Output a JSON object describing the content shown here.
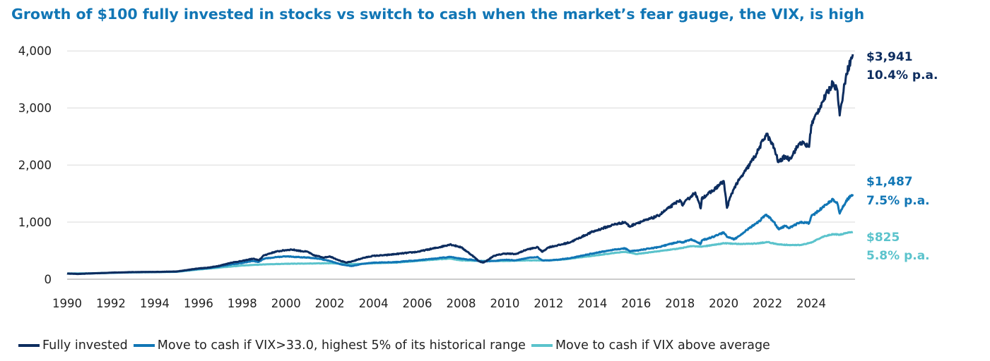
{
  "colors": {
    "fully_invested": "#0d2d5f",
    "vix33": "#1176b5",
    "vix_avg": "#5bc3cc",
    "title": "#1176b5",
    "grid": "#d9d9d9",
    "axis": "#999999"
  },
  "chart_data": {
    "type": "line",
    "title": "Growth of $100 fully invested in stocks vs switch to cash when the market’s fear gauge, the VIX, is high",
    "xlabel": "",
    "ylabel": "",
    "xlim": [
      1990,
      2026
    ],
    "ylim": [
      0,
      4200
    ],
    "x_ticks": [
      "1990",
      "1992",
      "1994",
      "1996",
      "1998",
      "2000",
      "2002",
      "2004",
      "2006",
      "2008",
      "2010",
      "2012",
      "2014",
      "2016",
      "2018",
      "2020",
      "2022",
      "2024"
    ],
    "y_ticks": [
      {
        "value": 0,
        "label": "0"
      },
      {
        "value": 1000,
        "label": "1,000"
      },
      {
        "value": 2000,
        "label": "2,000"
      },
      {
        "value": 3000,
        "label": "3,000"
      },
      {
        "value": 4000,
        "label": "4,000"
      }
    ],
    "grid": "horizontal",
    "legend_position": "bottom",
    "series": [
      {
        "name": "Fully invested",
        "color": "#0d2d5f",
        "end_value_label": "$3,941",
        "end_rate_label": "10.4% p.a.",
        "x": [
          1990.0,
          1990.5,
          1991.0,
          1992.0,
          1993.0,
          1994.0,
          1995.0,
          1996.0,
          1996.5,
          1997.0,
          1997.5,
          1998.0,
          1998.5,
          1998.75,
          1999.0,
          1999.5,
          2000.0,
          2000.25,
          2000.75,
          2001.0,
          2001.25,
          2001.75,
          2002.0,
          2002.5,
          2002.75,
          2003.0,
          2003.25,
          2003.5,
          2004.0,
          2004.5,
          2005.0,
          2006.0,
          2007.0,
          2007.5,
          2007.8,
          2008.0,
          2008.5,
          2008.8,
          2009.0,
          2009.2,
          2009.5,
          2010.0,
          2010.5,
          2011.0,
          2011.5,
          2011.7,
          2012.0,
          2012.5,
          2013.0,
          2014.0,
          2015.0,
          2015.5,
          2015.7,
          2016.0,
          2016.5,
          2017.0,
          2017.5,
          2018.0,
          2018.1,
          2018.5,
          2018.7,
          2018.95,
          2019.0,
          2019.5,
          2020.0,
          2020.15,
          2020.25,
          2020.5,
          2021.0,
          2021.5,
          2021.95,
          2022.3,
          2022.5,
          2022.8,
          2023.0,
          2023.5,
          2023.9,
          2024.0,
          2024.5,
          2025.0,
          2025.2,
          2025.3,
          2025.6,
          2025.9
        ],
        "values": [
          100,
          92,
          100,
          115,
          125,
          128,
          135,
          190,
          205,
          240,
          290,
          320,
          360,
          330,
          420,
          480,
          510,
          520,
          490,
          480,
          420,
          380,
          400,
          320,
          290,
          310,
          340,
          370,
          410,
          420,
          440,
          480,
          560,
          610,
          580,
          560,
          420,
          320,
          290,
          330,
          410,
          450,
          440,
          520,
          560,
          480,
          560,
          600,
          650,
          830,
          960,
          1000,
          920,
          980,
          1040,
          1110,
          1250,
          1390,
          1300,
          1450,
          1520,
          1240,
          1420,
          1550,
          1720,
          1250,
          1380,
          1620,
          1900,
          2200,
          2550,
          2300,
          2050,
          2150,
          2100,
          2400,
          2320,
          2700,
          3100,
          3450,
          3300,
          2870,
          3600,
          3941
        ]
      },
      {
        "name": "Move to cash if VIX>33.0, highest 5% of its historical range",
        "color": "#1176b5",
        "end_value_label": "$1,487",
        "end_rate_label": "7.5% p.a.",
        "x": [
          1990.0,
          1990.5,
          1991.0,
          1992.0,
          1993.0,
          1994.0,
          1995.0,
          1996.0,
          1996.5,
          1997.0,
          1997.5,
          1998.0,
          1998.5,
          1998.75,
          1999.0,
          1999.5,
          2000.0,
          2000.5,
          2001.0,
          2001.5,
          2002.0,
          2002.5,
          2003.0,
          2003.25,
          2003.5,
          2004.0,
          2005.0,
          2006.0,
          2007.0,
          2007.5,
          2008.0,
          2008.5,
          2009.0,
          2009.5,
          2010.0,
          2010.5,
          2011.0,
          2011.5,
          2011.7,
          2012.0,
          2012.5,
          2013.0,
          2014.0,
          2015.0,
          2015.5,
          2015.7,
          2016.0,
          2017.0,
          2018.0,
          2018.1,
          2018.5,
          2018.95,
          2019.0,
          2019.5,
          2020.0,
          2020.15,
          2020.5,
          2021.0,
          2021.5,
          2021.95,
          2022.3,
          2022.5,
          2022.8,
          2023.0,
          2023.5,
          2023.9,
          2024.0,
          2024.5,
          2025.0,
          2025.2,
          2025.3,
          2025.6,
          2025.9
        ],
        "values": [
          100,
          95,
          100,
          112,
          122,
          126,
          132,
          180,
          195,
          225,
          260,
          285,
          320,
          300,
          360,
          385,
          400,
          390,
          380,
          360,
          320,
          260,
          230,
          250,
          270,
          290,
          300,
          330,
          370,
          390,
          360,
          340,
          310,
          320,
          340,
          330,
          370,
          390,
          330,
          330,
          345,
          370,
          450,
          520,
          540,
          490,
          500,
          560,
          660,
          640,
          700,
          620,
          680,
          740,
          820,
          740,
          700,
          850,
          980,
          1130,
          1000,
          880,
          930,
          900,
          1000,
          980,
          1100,
          1250,
          1400,
          1320,
          1150,
          1380,
          1487
        ]
      },
      {
        "name": "Move to cash if VIX above average",
        "color": "#5bc3cc",
        "end_value_label": "$825",
        "end_rate_label": "5.8% p.a.",
        "x": [
          1990.0,
          1991.0,
          1992.0,
          1993.0,
          1994.0,
          1995.0,
          1996.0,
          1997.0,
          1998.0,
          1999.0,
          2000.0,
          2001.0,
          2002.0,
          2003.0,
          2003.5,
          2004.0,
          2005.0,
          2006.0,
          2007.0,
          2007.5,
          2008.0,
          2009.0,
          2010.0,
          2011.0,
          2012.0,
          2012.5,
          2013.0,
          2014.0,
          2015.0,
          2015.5,
          2016.0,
          2017.0,
          2018.0,
          2018.5,
          2019.0,
          2019.5,
          2020.0,
          2020.5,
          2021.0,
          2021.5,
          2022.0,
          2022.5,
          2023.0,
          2023.5,
          2024.0,
          2024.5,
          2025.0,
          2025.3,
          2025.6,
          2025.9
        ],
        "values": [
          100,
          103,
          112,
          120,
          124,
          130,
          170,
          205,
          240,
          260,
          270,
          275,
          280,
          265,
          270,
          280,
          290,
          320,
          350,
          360,
          330,
          320,
          320,
          330,
          330,
          340,
          360,
          410,
          460,
          480,
          440,
          490,
          540,
          580,
          570,
          600,
          630,
          620,
          620,
          625,
          650,
          610,
          600,
          600,
          640,
          740,
          790,
          780,
          810,
          825
        ]
      }
    ]
  }
}
